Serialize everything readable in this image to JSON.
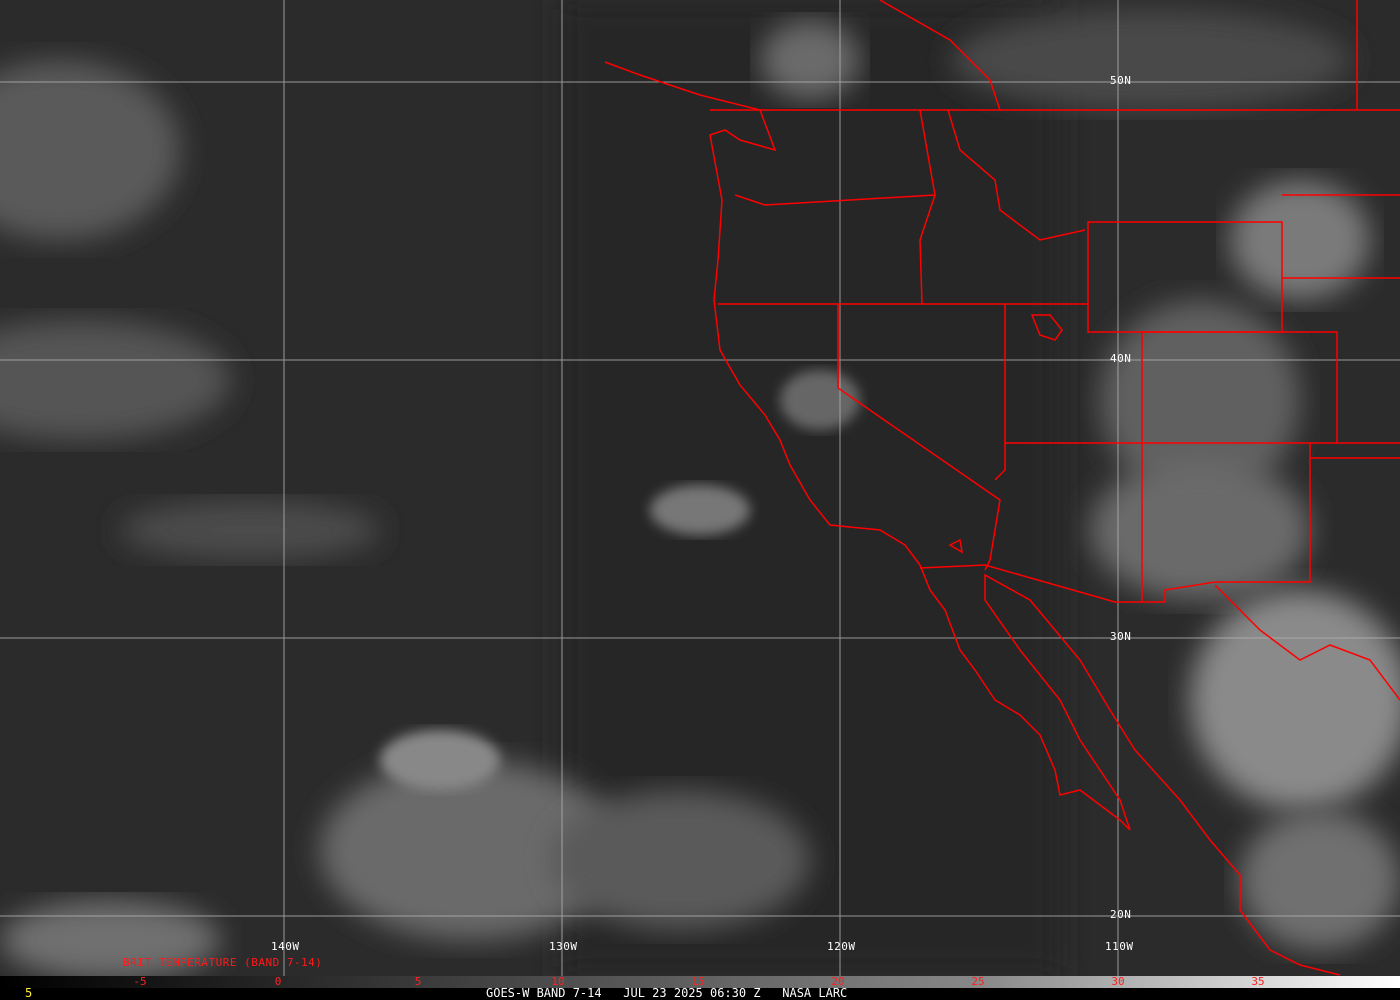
{
  "map": {
    "grid": {
      "longitudes": [
        "140W",
        "130W",
        "120W",
        "110W"
      ],
      "latitudes": [
        "50N",
        "40N",
        "30N",
        "20N"
      ]
    },
    "colors": {
      "borders": "#ff0000",
      "grid": "#b4b4b4",
      "background": "#2e2e2e"
    }
  },
  "legend": {
    "title": "BRIT TEMPERATURE (BAND 7-14)",
    "ticks": [
      "-5",
      "0",
      "5",
      "10",
      "15",
      "20",
      "25",
      "30",
      "35"
    ],
    "left_value": "5"
  },
  "footer": {
    "satellite": "GOES-W BAND 7-14",
    "datetime": "JUL 23 2025 06:30 Z",
    "credit": "NASA LARC"
  }
}
